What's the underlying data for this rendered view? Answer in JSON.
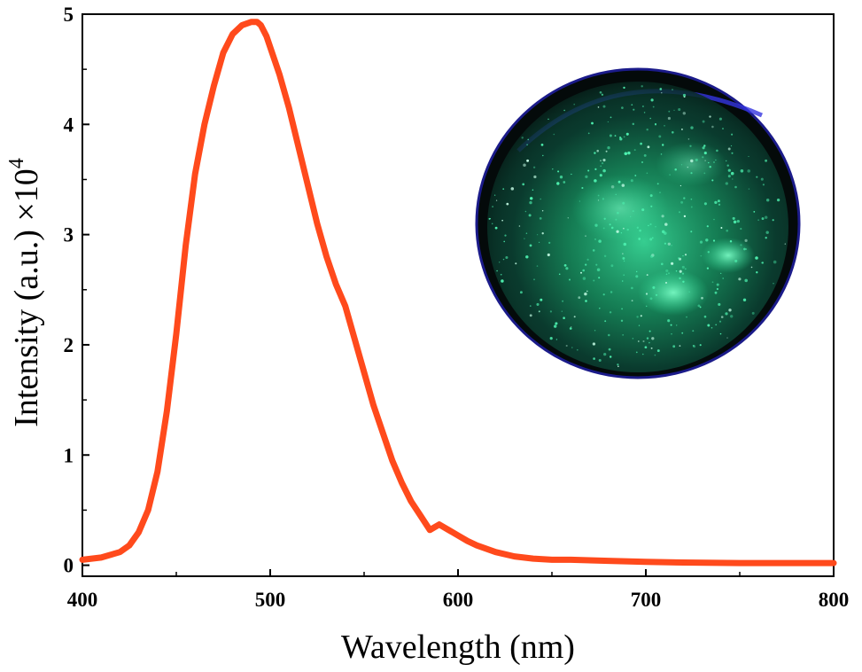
{
  "chart_data": {
    "type": "line",
    "title": "",
    "xlabel": "Wavelength (nm)",
    "ylabel": {
      "text": "Intensity (a.u.) ×10",
      "exponent": "4"
    },
    "xlim": [
      400,
      800
    ],
    "ylim": [
      -0.1,
      5.0
    ],
    "xticks": [
      400,
      500,
      600,
      700,
      800
    ],
    "yticks": [
      0,
      1,
      2,
      3,
      4,
      5
    ],
    "grid": false,
    "legend": "none",
    "series": [
      {
        "color": "#ff4a1c",
        "x": [
          400,
          410,
          420,
          425,
          430,
          435,
          440,
          445,
          450,
          455,
          460,
          465,
          470,
          475,
          480,
          485,
          490,
          493,
          495,
          498,
          500,
          505,
          510,
          515,
          520,
          525,
          530,
          535,
          540,
          545,
          550,
          555,
          560,
          565,
          570,
          575,
          580,
          585,
          590,
          595,
          600,
          605,
          610,
          620,
          630,
          640,
          650,
          660,
          680,
          700,
          720,
          750,
          780,
          800
        ],
        "y": [
          0.05,
          0.07,
          0.12,
          0.18,
          0.3,
          0.5,
          0.85,
          1.4,
          2.1,
          2.9,
          3.55,
          4.0,
          4.35,
          4.65,
          4.82,
          4.9,
          4.93,
          4.93,
          4.9,
          4.8,
          4.7,
          4.45,
          4.15,
          3.8,
          3.45,
          3.1,
          2.8,
          2.55,
          2.35,
          2.05,
          1.75,
          1.45,
          1.2,
          0.95,
          0.75,
          0.58,
          0.45,
          0.32,
          0.37,
          0.32,
          0.27,
          0.22,
          0.18,
          0.12,
          0.08,
          0.06,
          0.05,
          0.05,
          0.04,
          0.03,
          0.025,
          0.02,
          0.02,
          0.02
        ]
      }
    ]
  },
  "inset": {
    "name": "petri dish with green luminescent particles",
    "dish_color": "#0b1a16",
    "glow_color": "#2fe39a",
    "rim_color": "#2a2ad0"
  }
}
